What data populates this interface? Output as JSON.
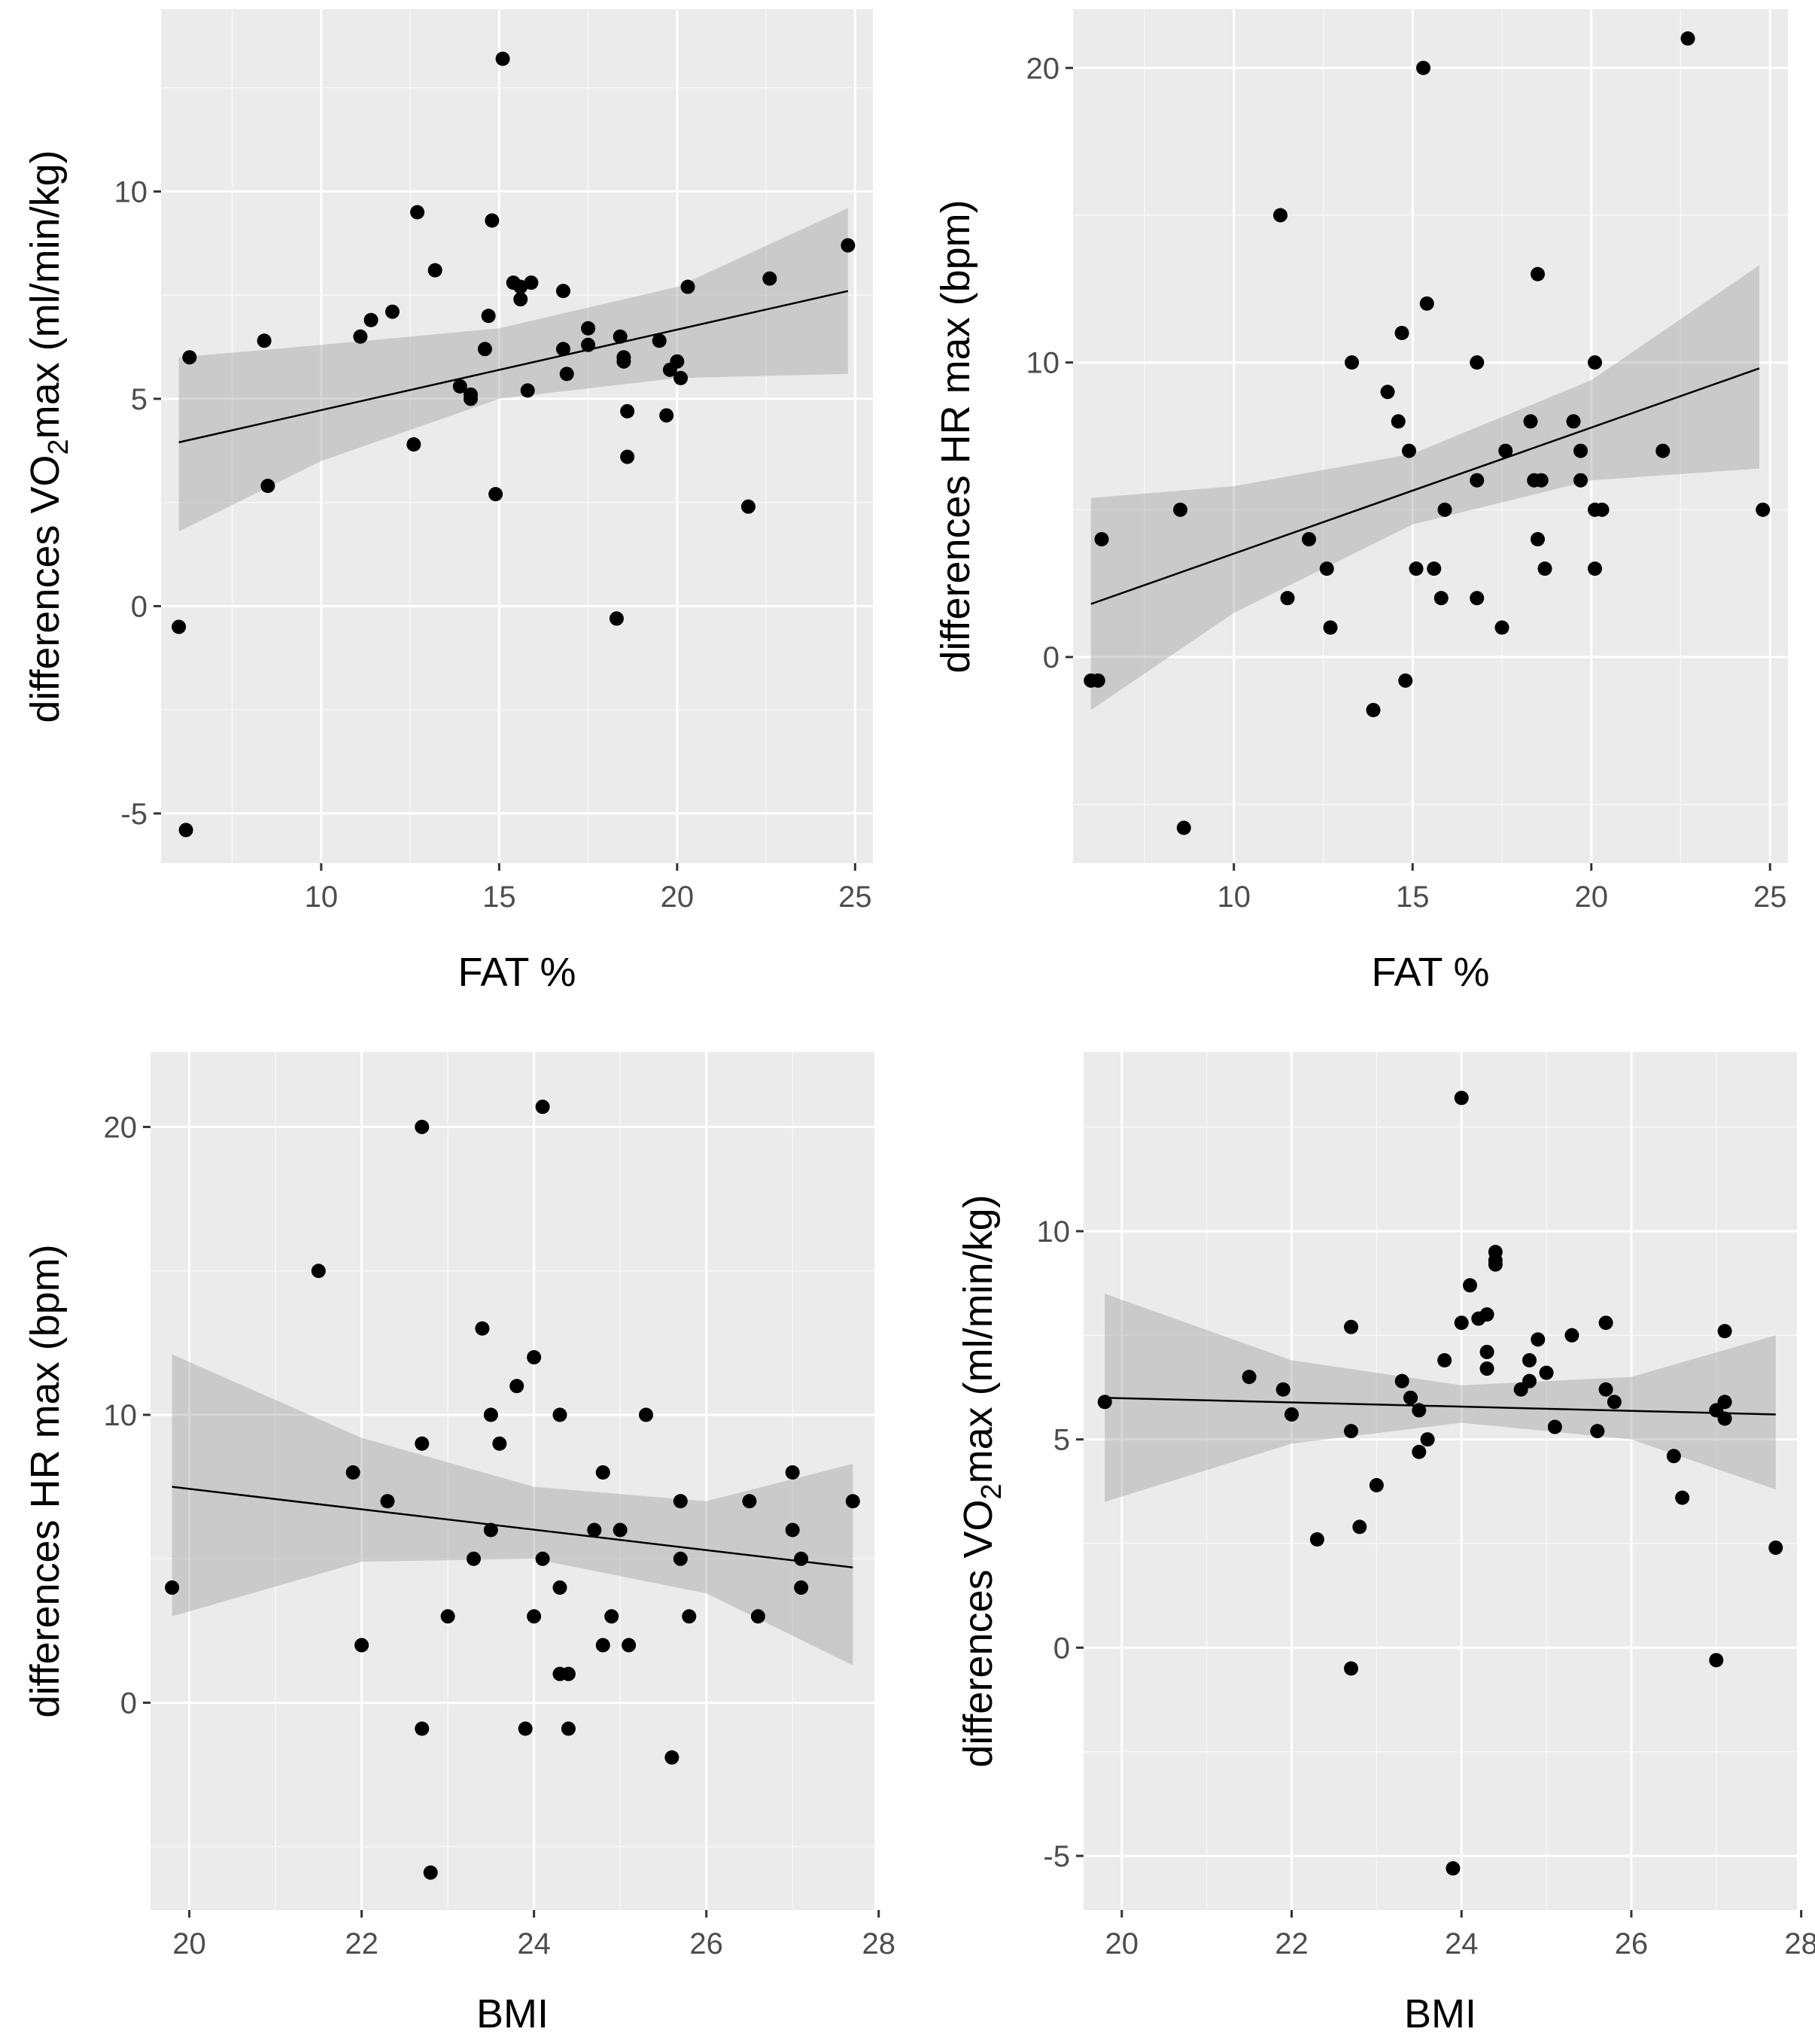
{
  "chart_data": [
    {
      "id": "fat_vo2",
      "type": "scatter",
      "xlabel": "FAT %",
      "ylabel_prefix": "differences VO",
      "ylabel_sub": "2",
      "ylabel_suffix": "max (ml/min/kg)",
      "xlim": [
        5.5,
        25.5
      ],
      "ylim": [
        -6.2,
        14.4
      ],
      "xticks": [
        10,
        15,
        20,
        25
      ],
      "yticks": [
        -5,
        0,
        5,
        10
      ],
      "fit": {
        "x": [
          6,
          24.8
        ],
        "y": [
          3.95,
          7.6
        ]
      },
      "band": {
        "x": [
          6,
          10,
          15,
          20,
          24.8
        ],
        "upper": [
          6.0,
          6.3,
          6.7,
          7.7,
          9.6
        ],
        "lower": [
          1.8,
          3.5,
          5.0,
          5.5,
          5.6
        ]
      },
      "points": [
        [
          6.0,
          -0.5
        ],
        [
          6.2,
          -5.4
        ],
        [
          6.3,
          6.0
        ],
        [
          8.4,
          6.4
        ],
        [
          8.5,
          2.9
        ],
        [
          11.1,
          6.5
        ],
        [
          11.4,
          6.9
        ],
        [
          12.0,
          7.1
        ],
        [
          12.6,
          3.9
        ],
        [
          12.7,
          9.5
        ],
        [
          13.2,
          8.1
        ],
        [
          13.9,
          5.3
        ],
        [
          14.2,
          5.1
        ],
        [
          14.2,
          5.0
        ],
        [
          14.6,
          6.2
        ],
        [
          14.7,
          7.0
        ],
        [
          14.8,
          9.3
        ],
        [
          14.9,
          2.7
        ],
        [
          15.1,
          13.2
        ],
        [
          15.4,
          7.8
        ],
        [
          15.6,
          7.4
        ],
        [
          15.6,
          7.7
        ],
        [
          15.8,
          5.2
        ],
        [
          15.9,
          7.8
        ],
        [
          16.8,
          6.2
        ],
        [
          16.8,
          7.6
        ],
        [
          16.9,
          5.6
        ],
        [
          17.5,
          6.3
        ],
        [
          17.5,
          6.7
        ],
        [
          18.3,
          -0.3
        ],
        [
          18.4,
          6.5
        ],
        [
          18.5,
          6.0
        ],
        [
          18.5,
          5.9
        ],
        [
          18.6,
          4.7
        ],
        [
          18.6,
          3.6
        ],
        [
          19.5,
          6.4
        ],
        [
          19.7,
          4.6
        ],
        [
          19.8,
          5.7
        ],
        [
          20.0,
          5.9
        ],
        [
          20.1,
          5.5
        ],
        [
          20.3,
          7.7
        ],
        [
          22.0,
          2.4
        ],
        [
          22.6,
          7.9
        ],
        [
          24.8,
          8.7
        ]
      ]
    },
    {
      "id": "fat_hr",
      "type": "scatter",
      "xlabel": "FAT %",
      "ylabel": "differences HR max (bpm)",
      "xlim": [
        5.5,
        25.5
      ],
      "ylim": [
        -7.0,
        22.0
      ],
      "xticks": [
        10,
        15,
        20,
        25
      ],
      "yticks": [
        0,
        10,
        20
      ],
      "fit": {
        "x": [
          6,
          24.7
        ],
        "y": [
          1.8,
          9.8
        ]
      },
      "band": {
        "x": [
          6,
          10,
          15,
          20,
          24.7
        ],
        "upper": [
          5.4,
          5.8,
          6.9,
          9.4,
          13.3
        ],
        "lower": [
          -1.8,
          1.5,
          4.5,
          6.0,
          6.4
        ]
      },
      "points": [
        [
          6.0,
          -0.8
        ],
        [
          6.2,
          -0.8
        ],
        [
          6.3,
          4.0
        ],
        [
          8.5,
          5.0
        ],
        [
          8.6,
          -5.8
        ],
        [
          11.3,
          15.0
        ],
        [
          11.5,
          2.0
        ],
        [
          12.1,
          4.0
        ],
        [
          12.6,
          3.0
        ],
        [
          12.7,
          1.0
        ],
        [
          13.3,
          10.0
        ],
        [
          13.9,
          -1.8
        ],
        [
          14.3,
          9.0
        ],
        [
          14.6,
          8.0
        ],
        [
          14.7,
          11.0
        ],
        [
          14.8,
          -0.8
        ],
        [
          14.9,
          7.0
        ],
        [
          15.1,
          3.0
        ],
        [
          15.3,
          20.0
        ],
        [
          15.4,
          12.0
        ],
        [
          15.6,
          3.0
        ],
        [
          15.8,
          2.0
        ],
        [
          15.9,
          5.0
        ],
        [
          16.8,
          2.0
        ],
        [
          16.8,
          6.0
        ],
        [
          16.8,
          10.0
        ],
        [
          17.5,
          1.0
        ],
        [
          17.6,
          7.0
        ],
        [
          18.3,
          8.0
        ],
        [
          18.4,
          6.0
        ],
        [
          18.5,
          13.0
        ],
        [
          18.5,
          4.0
        ],
        [
          18.6,
          6.0
        ],
        [
          18.7,
          3.0
        ],
        [
          19.5,
          8.0
        ],
        [
          19.7,
          7.0
        ],
        [
          19.7,
          6.0
        ],
        [
          20.1,
          5.0
        ],
        [
          20.1,
          10.0
        ],
        [
          20.1,
          3.0
        ],
        [
          20.3,
          5.0
        ],
        [
          22.0,
          7.0
        ],
        [
          22.7,
          21.0
        ],
        [
          24.8,
          5.0
        ]
      ]
    },
    {
      "id": "bmi_hr",
      "type": "scatter",
      "xlabel": "BMI",
      "ylabel": "differences HR max (bpm)",
      "xlim": [
        19.55,
        27.95
      ],
      "ylim": [
        -7.2,
        22.6
      ],
      "xticks": [
        20,
        22,
        24,
        26,
        28
      ],
      "yticks": [
        0,
        10,
        20
      ],
      "fit": {
        "x": [
          19.8,
          27.7
        ],
        "y": [
          7.5,
          4.7
        ]
      },
      "band": {
        "x": [
          19.8,
          22,
          24,
          26,
          27.7
        ],
        "upper": [
          12.1,
          9.2,
          7.5,
          7.0,
          8.3
        ],
        "lower": [
          3.0,
          4.9,
          5.0,
          3.8,
          1.3
        ]
      },
      "points": [
        [
          19.8,
          4.0
        ],
        [
          21.5,
          15.0
        ],
        [
          21.9,
          8.0
        ],
        [
          22.0,
          2.0
        ],
        [
          22.3,
          7.0
        ],
        [
          22.7,
          20.0
        ],
        [
          22.7,
          9.0
        ],
        [
          22.7,
          -0.9
        ],
        [
          22.8,
          -5.9
        ],
        [
          23.0,
          3.0
        ],
        [
          23.3,
          5.0
        ],
        [
          23.4,
          13.0
        ],
        [
          23.5,
          10.0
        ],
        [
          23.5,
          6.0
        ],
        [
          23.6,
          9.0
        ],
        [
          23.8,
          11.0
        ],
        [
          23.9,
          -0.9
        ],
        [
          24.0,
          12.0
        ],
        [
          24.0,
          3.0
        ],
        [
          24.1,
          5.0
        ],
        [
          24.1,
          20.7
        ],
        [
          24.3,
          4.0
        ],
        [
          24.3,
          10.0
        ],
        [
          24.3,
          1.0
        ],
        [
          24.4,
          1.0
        ],
        [
          24.4,
          -0.9
        ],
        [
          24.7,
          6.0
        ],
        [
          24.8,
          8.0
        ],
        [
          24.8,
          2.0
        ],
        [
          24.9,
          3.0
        ],
        [
          25.0,
          6.0
        ],
        [
          25.1,
          2.0
        ],
        [
          25.3,
          10.0
        ],
        [
          25.6,
          -1.9
        ],
        [
          25.7,
          7.0
        ],
        [
          25.7,
          5.0
        ],
        [
          25.8,
          3.0
        ],
        [
          26.5,
          7.0
        ],
        [
          26.6,
          3.0
        ],
        [
          27.0,
          8.0
        ],
        [
          27.0,
          6.0
        ],
        [
          27.1,
          5.0
        ],
        [
          27.1,
          4.0
        ],
        [
          27.7,
          7.0
        ]
      ]
    },
    {
      "id": "bmi_vo2",
      "type": "scatter",
      "xlabel": "BMI",
      "ylabel_prefix": "differences VO",
      "ylabel_sub": "2",
      "ylabel_suffix": "max (ml/min/kg)",
      "xlim": [
        19.55,
        27.95
      ],
      "ylim": [
        -6.3,
        14.3
      ],
      "xticks": [
        20,
        22,
        24,
        26,
        28
      ],
      "yticks": [
        -5,
        0,
        5,
        10
      ],
      "fit": {
        "x": [
          19.8,
          27.7
        ],
        "y": [
          6.0,
          5.6
        ]
      },
      "band": {
        "x": [
          19.8,
          22,
          24,
          26,
          27.7
        ],
        "upper": [
          8.5,
          6.9,
          6.3,
          6.5,
          7.5
        ],
        "lower": [
          3.5,
          4.9,
          5.4,
          5.0,
          3.8
        ]
      },
      "points": [
        [
          19.8,
          5.9
        ],
        [
          21.5,
          6.5
        ],
        [
          21.9,
          6.2
        ],
        [
          22.0,
          5.6
        ],
        [
          22.3,
          2.6
        ],
        [
          22.7,
          7.7
        ],
        [
          22.7,
          -0.5
        ],
        [
          22.7,
          5.2
        ],
        [
          22.8,
          2.9
        ],
        [
          23.0,
          3.9
        ],
        [
          23.3,
          6.4
        ],
        [
          23.4,
          6.0
        ],
        [
          23.5,
          5.7
        ],
        [
          23.5,
          4.7
        ],
        [
          23.6,
          5.0
        ],
        [
          23.8,
          6.9
        ],
        [
          23.9,
          -5.3
        ],
        [
          24.0,
          7.8
        ],
        [
          24.0,
          13.2
        ],
        [
          24.1,
          8.7
        ],
        [
          24.2,
          7.9
        ],
        [
          24.3,
          8.0
        ],
        [
          24.3,
          7.1
        ],
        [
          24.3,
          6.7
        ],
        [
          24.4,
          9.2
        ],
        [
          24.4,
          9.3
        ],
        [
          24.4,
          9.5
        ],
        [
          24.7,
          6.2
        ],
        [
          24.8,
          6.9
        ],
        [
          24.8,
          6.4
        ],
        [
          24.9,
          7.4
        ],
        [
          25.0,
          6.6
        ],
        [
          25.1,
          5.3
        ],
        [
          25.3,
          7.5
        ],
        [
          25.6,
          5.2
        ],
        [
          25.7,
          7.8
        ],
        [
          25.7,
          6.2
        ],
        [
          25.8,
          5.9
        ],
        [
          26.5,
          4.6
        ],
        [
          26.6,
          3.6
        ],
        [
          27.0,
          -0.3
        ],
        [
          27.0,
          5.7
        ],
        [
          27.1,
          5.9
        ],
        [
          27.1,
          7.6
        ],
        [
          27.1,
          5.5
        ],
        [
          27.7,
          2.4
        ]
      ]
    }
  ]
}
